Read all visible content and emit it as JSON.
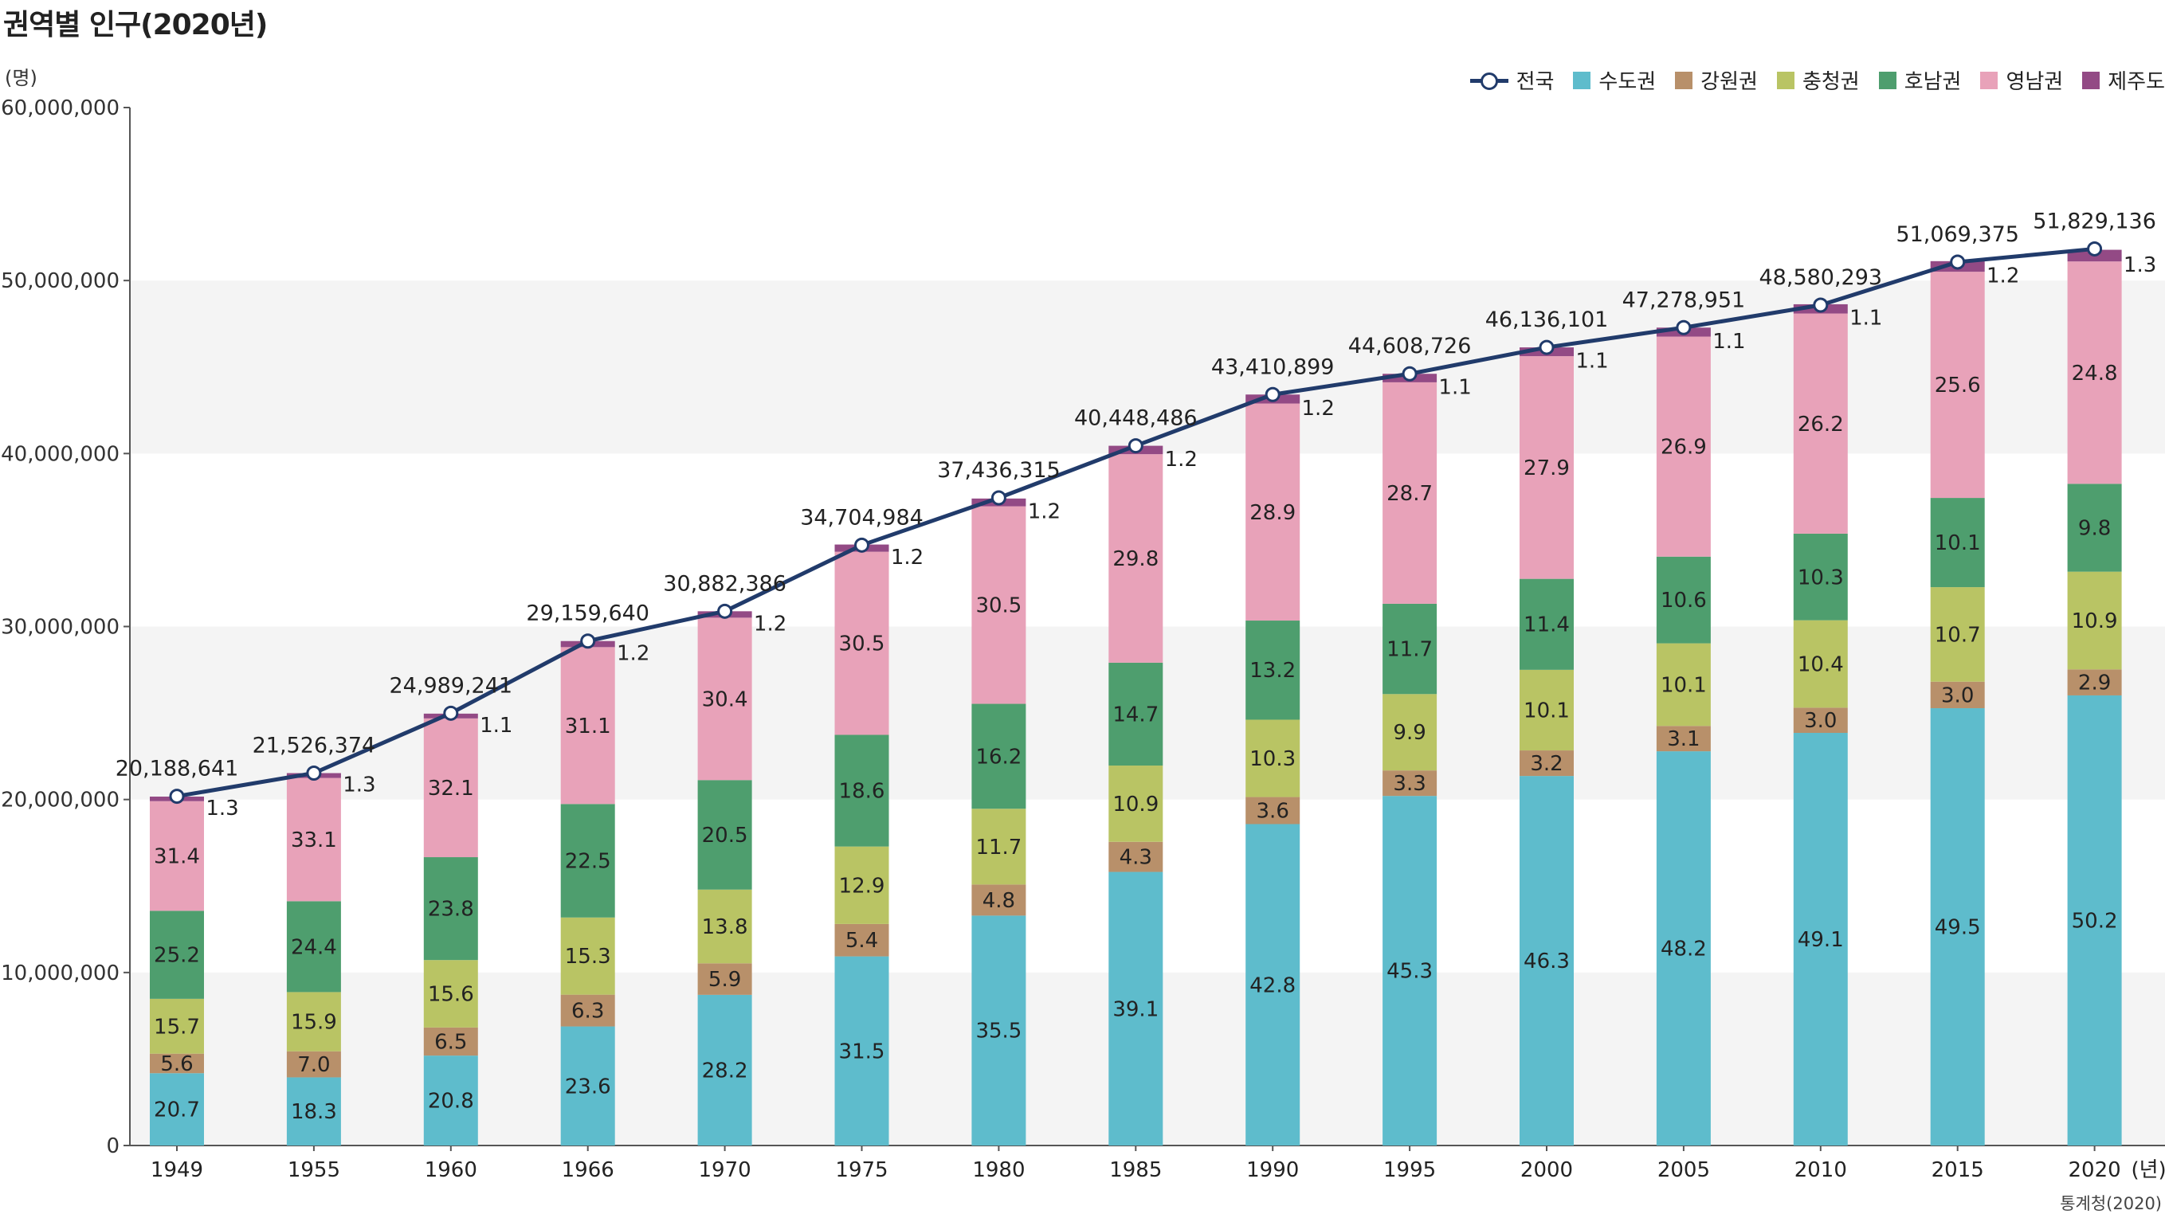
{
  "title": "권역별 인구(2020년)",
  "y_unit_label": "(명)",
  "source": "통계청(2020)",
  "x_unit_suffix": "(년)",
  "colors": {
    "capital": "#5ebccc",
    "gangwon": "#b8906a",
    "chungcheong": "#b9c464",
    "honam": "#4e9e6e",
    "yeongnam": "#e8a2b9",
    "jeju": "#934a85",
    "national_line": "#213b6b",
    "band": "#f4f4f4"
  },
  "legend": [
    {
      "name": "전국",
      "key": "national_line",
      "kind": "line"
    },
    {
      "name": "수도권",
      "key": "capital",
      "kind": "box"
    },
    {
      "name": "강원권",
      "key": "gangwon",
      "kind": "box"
    },
    {
      "name": "충청권",
      "key": "chungcheong",
      "kind": "box"
    },
    {
      "name": "호남권",
      "key": "honam",
      "kind": "box"
    },
    {
      "name": "영남권",
      "key": "yeongnam",
      "kind": "box"
    },
    {
      "name": "제주도",
      "key": "jeju",
      "kind": "box"
    }
  ],
  "chart_data": {
    "type": "bar",
    "stacked": true,
    "stack_values_are_percent_shares": true,
    "title": "권역별 인구(2020년)",
    "categories": [
      "1949",
      "1955",
      "1960",
      "1966",
      "1970",
      "1975",
      "1980",
      "1985",
      "1990",
      "1995",
      "2000",
      "2005",
      "2010",
      "2015",
      "2020"
    ],
    "ylim": [
      0,
      60000000
    ],
    "yticks": [
      "0",
      "10,000,000",
      "20,000,000",
      "30,000,000",
      "40,000,000",
      "50,000,000",
      "60,000,000"
    ],
    "ytick_values": [
      0,
      10000000,
      20000000,
      30000000,
      40000000,
      50000000,
      60000000
    ],
    "legend_position": "top-right",
    "series": [
      {
        "name": "수도권",
        "color_key": "capital",
        "values": [
          20.7,
          18.3,
          20.8,
          23.6,
          28.2,
          31.5,
          35.5,
          39.1,
          42.8,
          45.3,
          46.3,
          48.2,
          49.1,
          49.5,
          50.2
        ]
      },
      {
        "name": "강원권",
        "color_key": "gangwon",
        "values": [
          5.6,
          7.0,
          6.5,
          6.3,
          5.9,
          5.4,
          4.8,
          4.3,
          3.6,
          3.3,
          3.2,
          3.1,
          3.0,
          3.0,
          2.9
        ]
      },
      {
        "name": "충청권",
        "color_key": "chungcheong",
        "values": [
          15.7,
          15.9,
          15.6,
          15.3,
          13.8,
          12.9,
          11.7,
          10.9,
          10.3,
          9.9,
          10.1,
          10.1,
          10.4,
          10.7,
          10.9
        ]
      },
      {
        "name": "호남권",
        "color_key": "honam",
        "values": [
          25.2,
          24.4,
          23.8,
          22.5,
          20.5,
          18.6,
          16.2,
          14.7,
          13.2,
          11.7,
          11.4,
          10.6,
          10.3,
          10.1,
          9.8
        ]
      },
      {
        "name": "영남권",
        "color_key": "yeongnam",
        "values": [
          31.4,
          33.1,
          32.1,
          31.1,
          30.4,
          30.5,
          30.5,
          29.8,
          28.9,
          28.7,
          27.9,
          26.9,
          26.2,
          25.6,
          24.8
        ]
      },
      {
        "name": "제주도",
        "color_key": "jeju",
        "values": [
          1.3,
          1.3,
          1.1,
          1.2,
          1.2,
          1.2,
          1.2,
          1.2,
          1.2,
          1.1,
          1.1,
          1.1,
          1.1,
          1.2,
          1.3
        ]
      }
    ],
    "line": {
      "name": "전국",
      "values": [
        20188641,
        21526374,
        24989241,
        29159640,
        30882386,
        34704984,
        37436315,
        40448486,
        43410899,
        44608726,
        46136101,
        47278951,
        48580293,
        51069375,
        51829136
      ],
      "labels": [
        "20,188,641",
        "21,526,374",
        "24,989,241",
        "29,159,640",
        "30,882,386",
        "34,704,984",
        "37,436,315",
        "40,448,486",
        "43,410,899",
        "44,608,726",
        "46,136,101",
        "47,278,951",
        "48,580,293",
        "51,069,375",
        "51,829,136"
      ]
    }
  }
}
